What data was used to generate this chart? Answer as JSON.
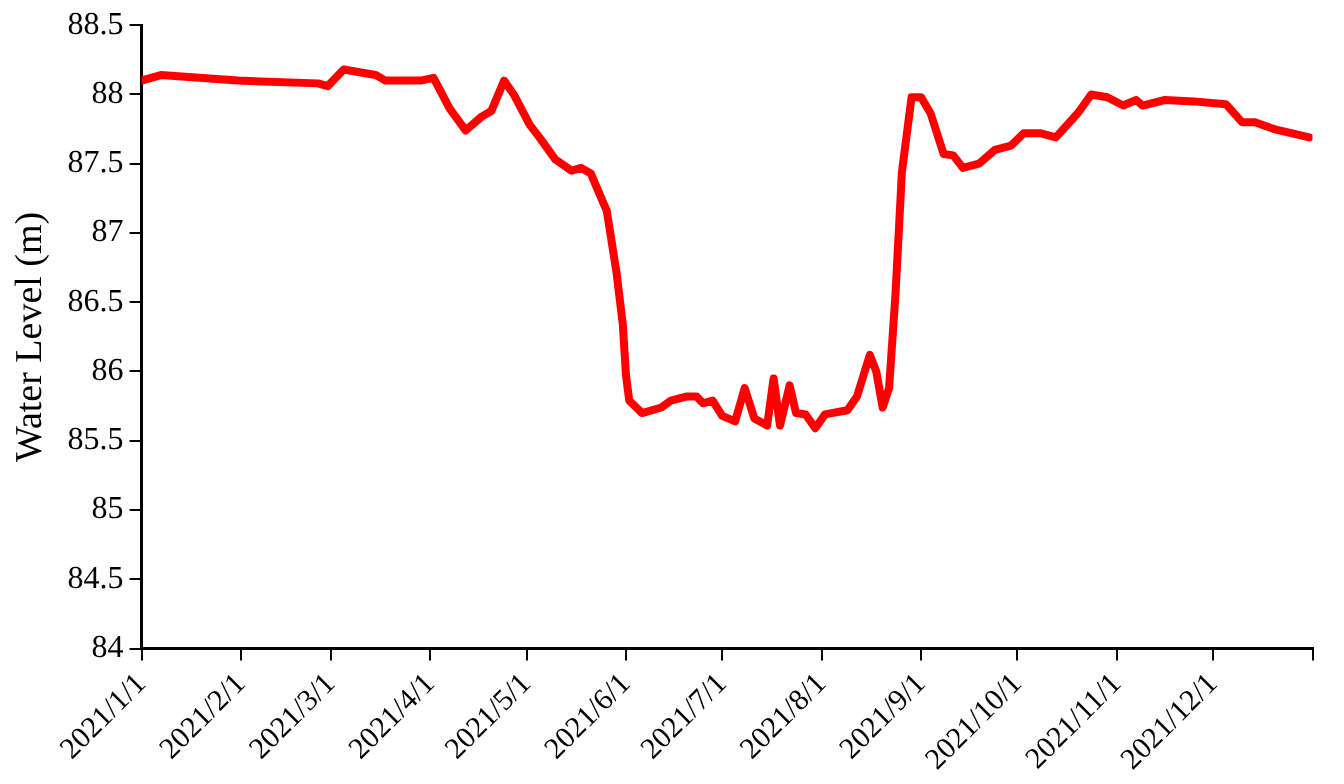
{
  "chart_data": {
    "type": "line",
    "ylabel": "Water Level (m)",
    "x": [
      "2021-01-01",
      "2021-01-07",
      "2021-01-31",
      "2021-02-25",
      "2021-02-28",
      "2021-03-05",
      "2021-03-15",
      "2021-03-18",
      "2021-03-29",
      "2021-04-02",
      "2021-04-07",
      "2021-04-12",
      "2021-04-17",
      "2021-04-20",
      "2021-04-24",
      "2021-04-27",
      "2021-05-02",
      "2021-05-05",
      "2021-05-10",
      "2021-05-15",
      "2021-05-18",
      "2021-05-21",
      "2021-05-26",
      "2021-05-29",
      "2021-05-31",
      "2021-06-01",
      "2021-06-02",
      "2021-06-06",
      "2021-06-12",
      "2021-06-15",
      "2021-06-20",
      "2021-06-23",
      "2021-06-25",
      "2021-06-28",
      "2021-07-01",
      "2021-07-05",
      "2021-07-08",
      "2021-07-11",
      "2021-07-15",
      "2021-07-17",
      "2021-07-19",
      "2021-07-22",
      "2021-07-24",
      "2021-07-27",
      "2021-07-30",
      "2021-08-02",
      "2021-08-09",
      "2021-08-12",
      "2021-08-16",
      "2021-08-18",
      "2021-08-20",
      "2021-08-22",
      "2021-08-24",
      "2021-08-26",
      "2021-08-29",
      "2021-09-01",
      "2021-09-04",
      "2021-09-08",
      "2021-09-11",
      "2021-09-14",
      "2021-09-19",
      "2021-09-24",
      "2021-09-29",
      "2021-10-03",
      "2021-10-08",
      "2021-10-13",
      "2021-10-20",
      "2021-10-24",
      "2021-10-29",
      "2021-11-03",
      "2021-11-07",
      "2021-11-09",
      "2021-11-16",
      "2021-11-25",
      "2021-12-05",
      "2021-12-10",
      "2021-12-14",
      "2021-12-20",
      "2021-12-31"
    ],
    "series": [
      {
        "color": "#ff0000",
        "values": [
          88.1,
          88.14,
          88.1,
          88.08,
          88.06,
          88.18,
          88.14,
          88.1,
          88.1,
          88.12,
          87.9,
          87.74,
          87.84,
          87.88,
          88.1,
          88.0,
          87.78,
          87.69,
          87.53,
          87.45,
          87.47,
          87.43,
          87.16,
          86.72,
          86.34,
          85.97,
          85.79,
          85.7,
          85.74,
          85.79,
          85.82,
          85.82,
          85.77,
          85.79,
          85.68,
          85.64,
          85.88,
          85.66,
          85.61,
          85.95,
          85.61,
          85.9,
          85.7,
          85.69,
          85.59,
          85.69,
          85.72,
          85.82,
          86.12,
          86.0,
          85.74,
          85.88,
          86.56,
          87.44,
          87.98,
          87.98,
          87.86,
          87.57,
          87.56,
          87.47,
          87.5,
          87.6,
          87.63,
          87.72,
          87.72,
          87.69,
          87.87,
          88.0,
          87.98,
          87.92,
          87.96,
          87.92,
          87.96,
          87.95,
          87.93,
          87.8,
          87.8,
          87.75,
          87.69
        ]
      }
    ],
    "xlim": [
      "2021-01-01",
      "2022-01-01"
    ],
    "xticks": [
      {
        "value": "2021-01-01",
        "label": "2021/1/1"
      },
      {
        "value": "2021-02-01",
        "label": "2021/2/1"
      },
      {
        "value": "2021-03-01",
        "label": "2021/3/1"
      },
      {
        "value": "2021-04-01",
        "label": "2021/4/1"
      },
      {
        "value": "2021-05-01",
        "label": "2021/5/1"
      },
      {
        "value": "2021-06-01",
        "label": "2021/6/1"
      },
      {
        "value": "2021-07-01",
        "label": "2021/7/1"
      },
      {
        "value": "2021-08-01",
        "label": "2021/8/1"
      },
      {
        "value": "2021-09-01",
        "label": "2021/9/1"
      },
      {
        "value": "2021-10-01",
        "label": "2021/10/1"
      },
      {
        "value": "2021-11-01",
        "label": "2021/11/1"
      },
      {
        "value": "2021-12-01",
        "label": "2021/12/1"
      },
      {
        "value": "2022-01-01",
        "label": null
      }
    ],
    "ylim": [
      84,
      88.5
    ],
    "yticks": [
      84,
      84.5,
      85,
      85.5,
      86,
      86.5,
      87,
      87.5,
      88,
      88.5
    ],
    "grid": false,
    "legend": false,
    "marker": "none",
    "line_style": "solid"
  }
}
